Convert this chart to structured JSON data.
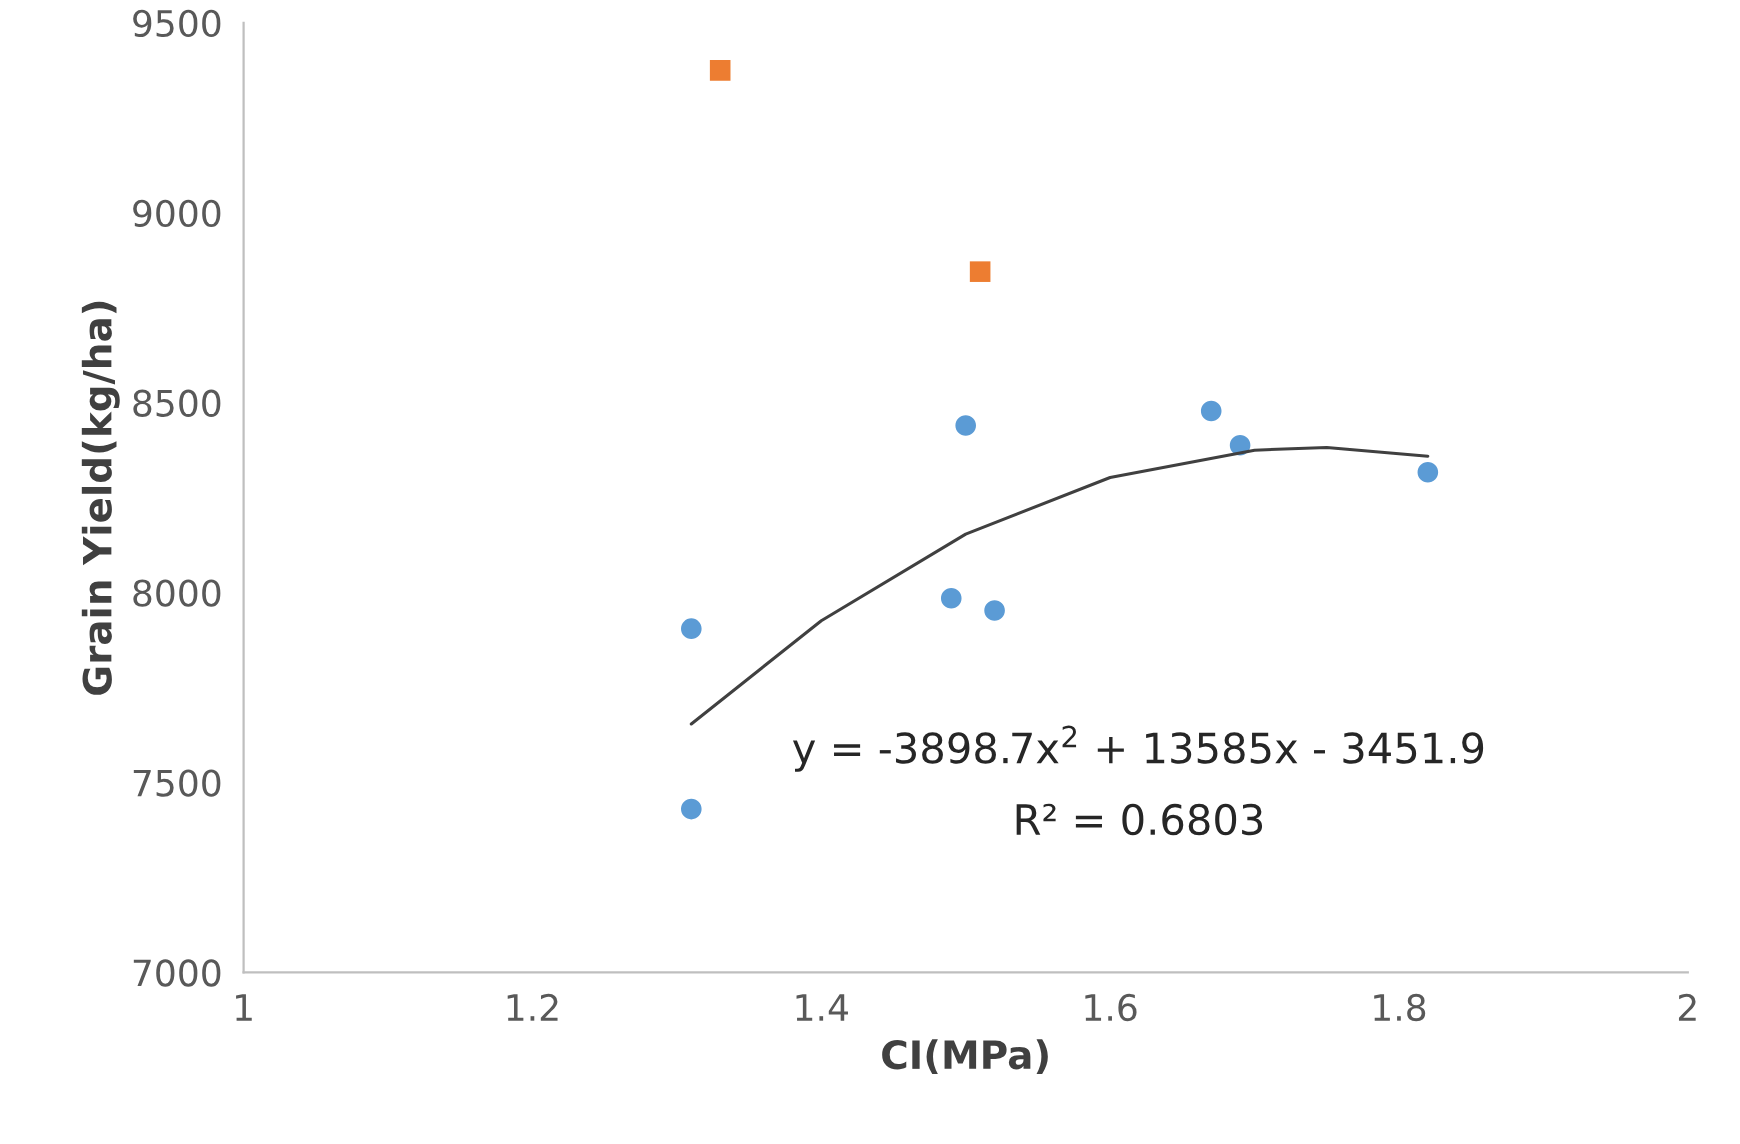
{
  "chart_data": {
    "type": "scatter",
    "xlabel": "CI(MPa)",
    "ylabel": "Grain Yield(kg/ha)",
    "xlim": [
      1,
      2
    ],
    "xticks": [
      1,
      1.2,
      1.4,
      1.6,
      1.8,
      2
    ],
    "ylim": [
      7000,
      9500
    ],
    "yticks": [
      7000,
      7500,
      8000,
      8500,
      9000,
      9500
    ],
    "grid": false,
    "legend": false,
    "series": [
      {
        "marker": "circle",
        "color": "#5b9bd5",
        "x": [
          1.31,
          1.31,
          1.49,
          1.52,
          1.5,
          1.67,
          1.69,
          1.82
        ],
        "values": [
          7905,
          7430,
          7985,
          7953,
          8440,
          8478,
          8388,
          8317
        ]
      },
      {
        "marker": "square",
        "color": "#ed7d31",
        "x": [
          1.33,
          1.51
        ],
        "values": [
          9375,
          8845
        ]
      },
      {
        "type": "line",
        "marker": "none",
        "color": "#404040",
        "x": [
          1.31,
          1.4,
          1.5,
          1.6,
          1.7,
          1.75,
          1.82
        ],
        "values": [
          7654,
          7926,
          8154,
          8303,
          8375,
          8382,
          8359
        ]
      }
    ],
    "annotations": [
      "y = -3898.7x$^{2}$ + 13585x - 3451.9",
      "R² = 0.6803"
    ]
  }
}
